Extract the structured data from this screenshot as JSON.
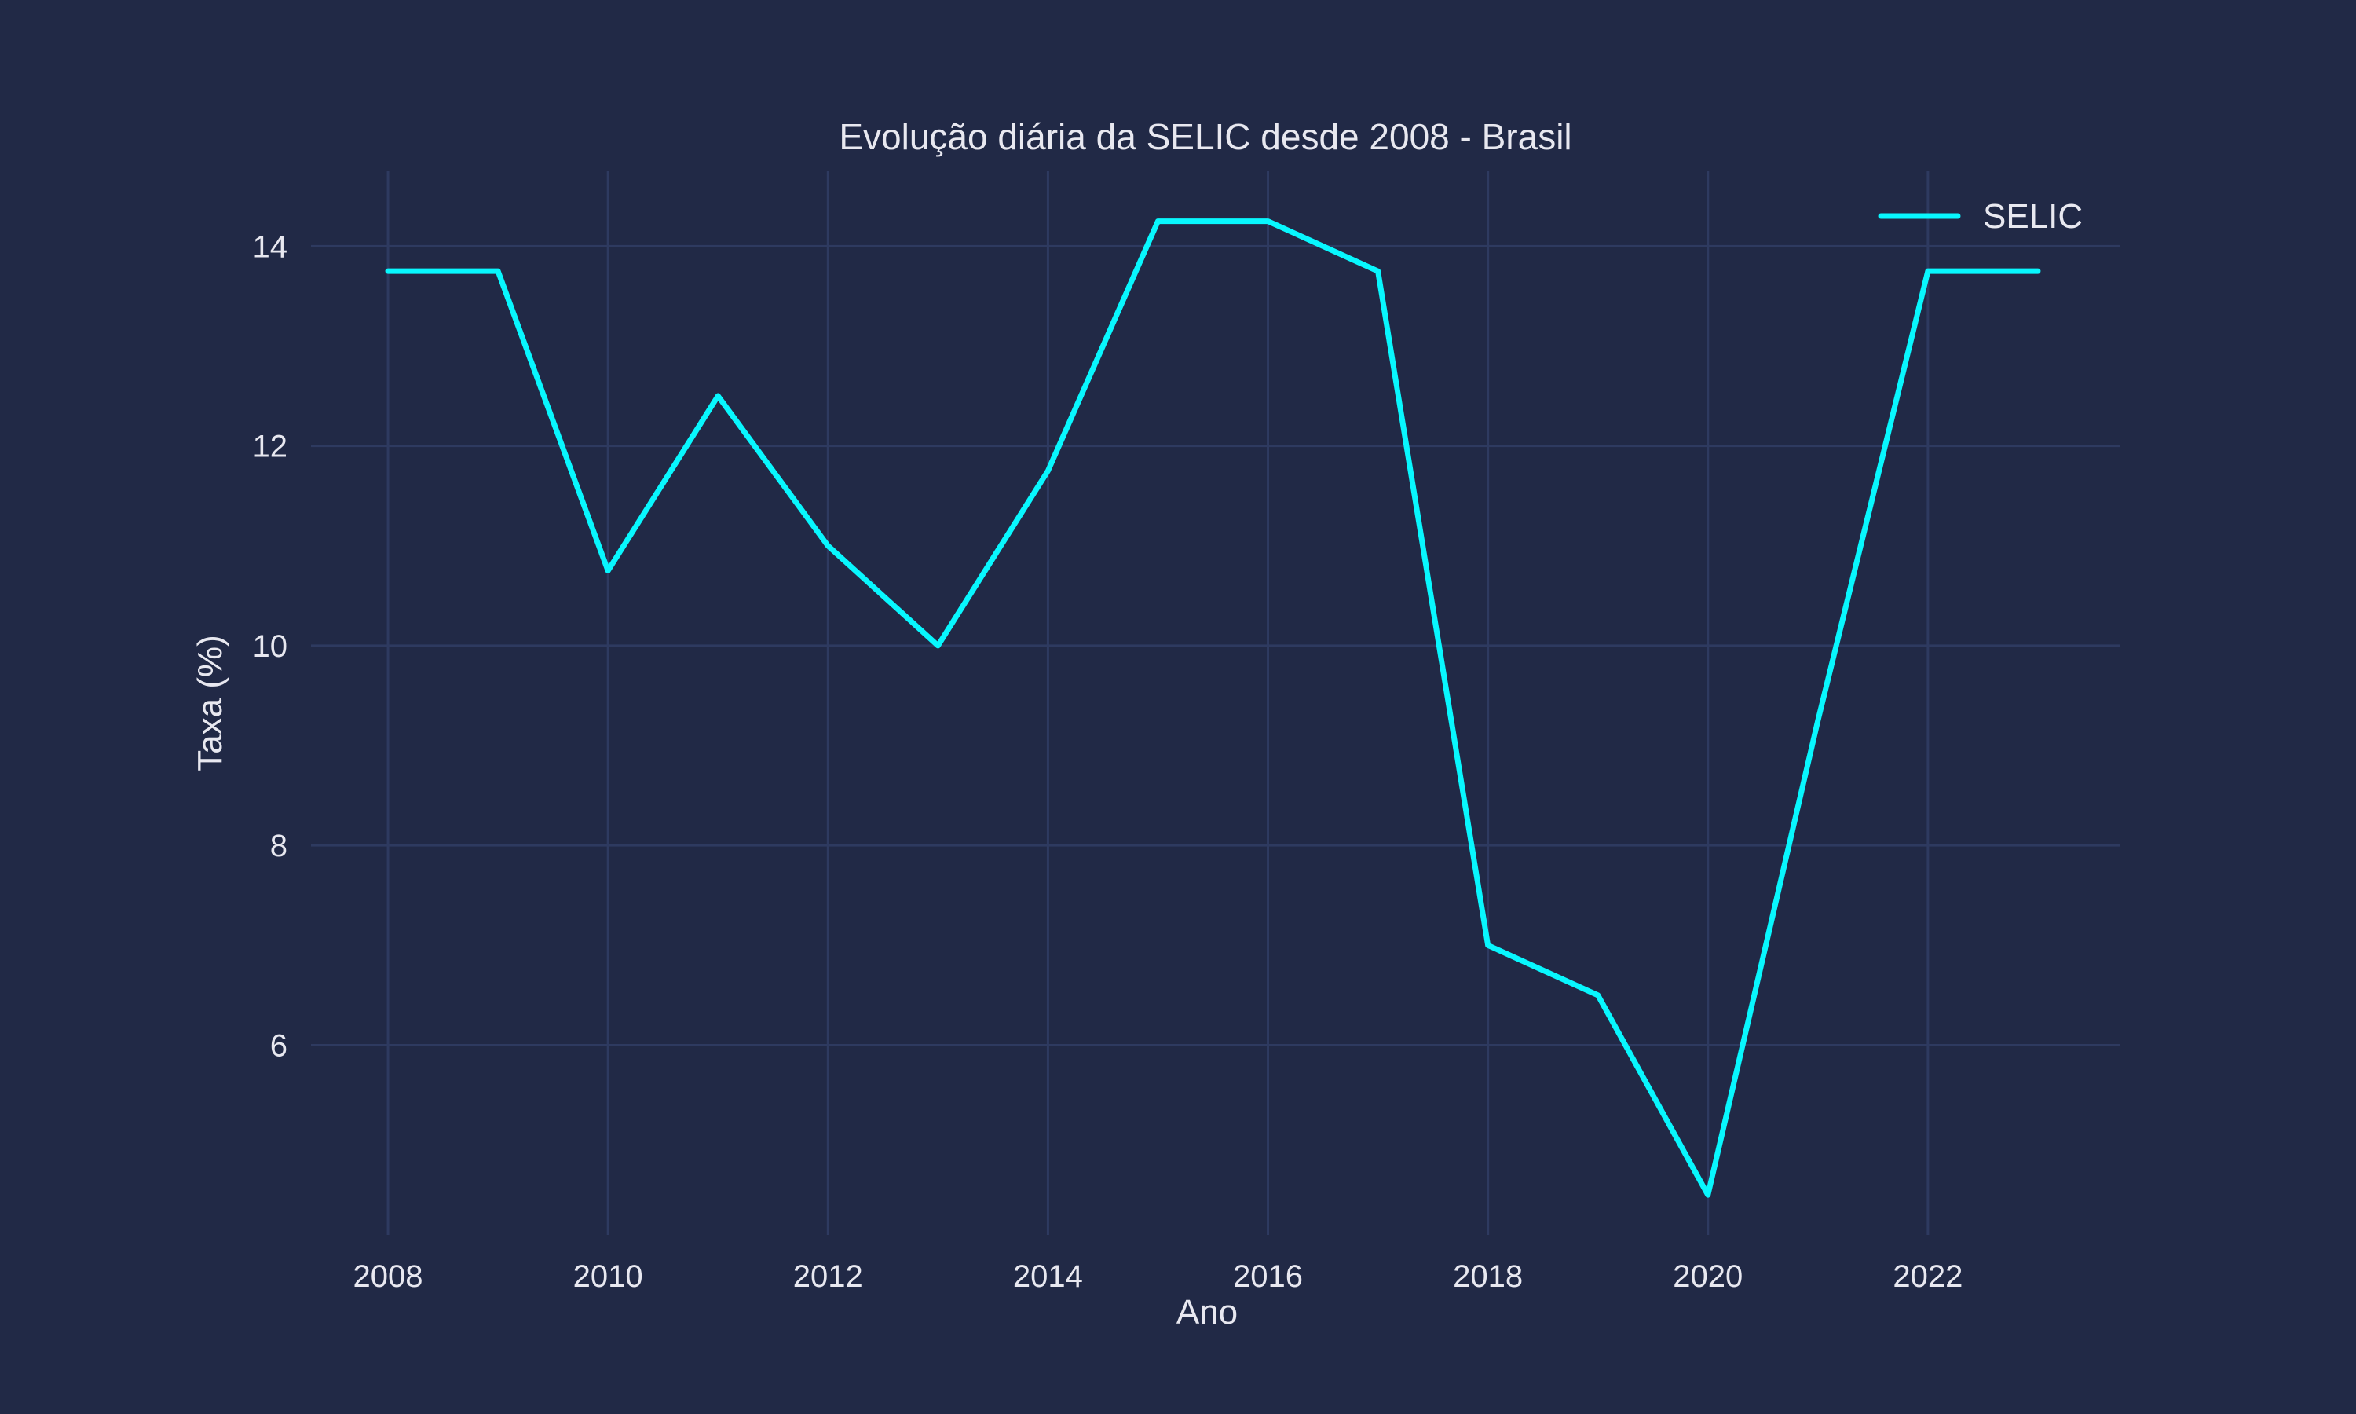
{
  "colors": {
    "background": "#212946",
    "grid": "#2e3a60",
    "text": "#e8e8f0",
    "series": "#08F7FE"
  },
  "chart_data": {
    "type": "line",
    "title": "Evolução diária da SELIC desde 2008 - Brasil",
    "xlabel": "Ano",
    "ylabel": "Taxa (%)",
    "xlim": [
      2007.3,
      2023.75
    ],
    "ylim": [
      4.1,
      14.75
    ],
    "xticks": [
      2008,
      2010,
      2012,
      2014,
      2016,
      2018,
      2020,
      2022
    ],
    "yticks": [
      6,
      8,
      10,
      12,
      14
    ],
    "grid": true,
    "legend_position": "top-right",
    "x": [
      2008,
      2009,
      2010,
      2011,
      2012,
      2013,
      2014,
      2015,
      2016,
      2017,
      2018,
      2019,
      2020,
      2021,
      2022,
      2023
    ],
    "series": [
      {
        "name": "SELIC",
        "values": [
          13.75,
          13.75,
          10.75,
          12.5,
          11.0,
          10.0,
          11.75,
          14.25,
          14.25,
          13.75,
          7.0,
          6.5,
          4.5,
          9.25,
          13.75,
          13.75
        ]
      }
    ]
  }
}
